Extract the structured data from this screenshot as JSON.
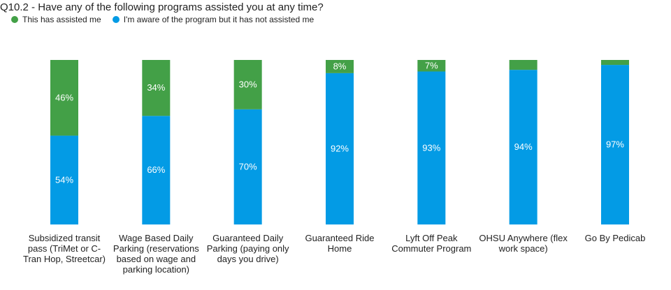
{
  "colors": {
    "assisted": "#43a047",
    "aware": "#039be5"
  },
  "chart_data": {
    "type": "bar",
    "stacked": true,
    "title": "Q10.2 - Have any of the following programs assisted you at any time?",
    "categories": [
      "Subsidized transit pass (TriMet or C-Tran Hop, Streetcar)",
      "Wage Based Daily Parking (reservations based on wage and parking location)",
      "Guaranteed Daily Parking (paying only days you drive)",
      "Guaranteed Ride Home",
      "Lyft Off Peak Commuter Program",
      "OHSU Anywhere (flex work space)",
      "Go By Pedicab"
    ],
    "series": [
      {
        "name": "This has assisted me",
        "values": [
          46,
          34,
          30,
          8,
          7,
          6,
          3
        ],
        "labels": [
          "46%",
          "34%",
          "30%",
          "8%",
          "7%",
          "",
          ""
        ]
      },
      {
        "name": "I'm aware of the program but it has not assisted me",
        "values": [
          54,
          66,
          70,
          92,
          93,
          94,
          97
        ],
        "labels": [
          "54%",
          "66%",
          "70%",
          "92%",
          "93%",
          "94%",
          "97%"
        ]
      }
    ],
    "ylim": [
      0,
      100
    ],
    "grid": false,
    "legend": "top-left"
  }
}
